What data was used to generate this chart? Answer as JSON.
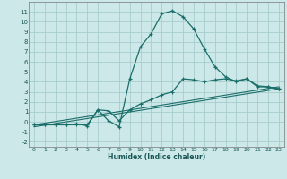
{
  "xlabel": "Humidex (Indice chaleur)",
  "xlim": [
    -0.5,
    23.5
  ],
  "ylim": [
    -2.5,
    12.0
  ],
  "bg_color": "#cce8e8",
  "grid_color": "#a8cccc",
  "line_color": "#1a6e6a",
  "line1_x": [
    0,
    1,
    2,
    3,
    4,
    5,
    6,
    7,
    8,
    9,
    10,
    11,
    12,
    13,
    14,
    15,
    16,
    17,
    18,
    19,
    20,
    21,
    22,
    23
  ],
  "line1_y": [
    -0.3,
    -0.3,
    -0.3,
    -0.3,
    -0.2,
    -0.4,
    1.2,
    0.1,
    -0.5,
    4.3,
    7.5,
    8.8,
    10.8,
    11.1,
    10.5,
    9.3,
    7.3,
    5.5,
    4.5,
    4.0,
    4.3,
    3.5,
    3.5,
    3.3
  ],
  "line2_x": [
    0,
    1,
    2,
    3,
    4,
    5,
    6,
    7,
    8,
    9,
    10,
    11,
    12,
    13,
    14,
    15,
    16,
    17,
    18,
    19,
    20,
    21,
    22,
    23
  ],
  "line2_y": [
    -0.3,
    -0.3,
    -0.3,
    -0.3,
    -0.3,
    -0.3,
    1.2,
    1.1,
    0.1,
    1.2,
    1.8,
    2.2,
    2.7,
    3.0,
    4.3,
    4.2,
    4.0,
    4.2,
    4.3,
    4.1,
    4.3,
    3.6,
    3.5,
    3.3
  ],
  "line3_x": [
    0,
    23
  ],
  "line3_y": [
    -0.3,
    3.5
  ],
  "line4_x": [
    0,
    23
  ],
  "line4_y": [
    -0.5,
    3.3
  ],
  "xticks": [
    0,
    1,
    2,
    3,
    4,
    5,
    6,
    7,
    8,
    9,
    10,
    11,
    12,
    13,
    14,
    15,
    16,
    17,
    18,
    19,
    20,
    21,
    22,
    23
  ],
  "yticks": [
    -2,
    -1,
    0,
    1,
    2,
    3,
    4,
    5,
    6,
    7,
    8,
    9,
    10,
    11
  ]
}
